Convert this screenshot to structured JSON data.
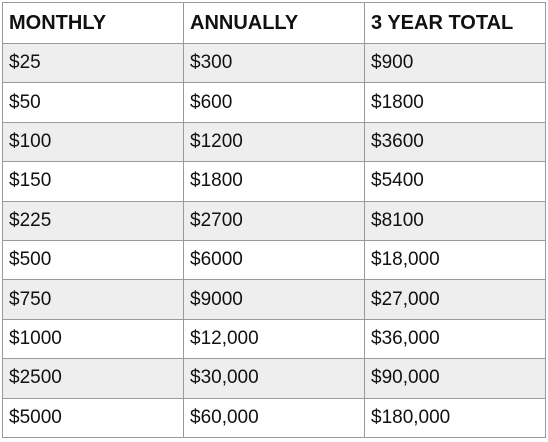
{
  "table": {
    "headers": [
      "MONTHLY",
      "ANNUALLY",
      "3 YEAR TOTAL"
    ],
    "rows": [
      [
        "$25",
        "$300",
        "$900"
      ],
      [
        "$50",
        "$600",
        "$1800"
      ],
      [
        "$100",
        "$1200",
        "$3600"
      ],
      [
        "$150",
        "$1800",
        "$5400"
      ],
      [
        "$225",
        "$2700",
        "$8100"
      ],
      [
        "$500",
        "$6000",
        "$18,000"
      ],
      [
        "$750",
        "$9000",
        "$27,000"
      ],
      [
        "$1000",
        "$12,000",
        "$36,000"
      ],
      [
        "$2500",
        "$30,000",
        "$90,000"
      ],
      [
        "$5000",
        "$60,000",
        "$180,000"
      ]
    ],
    "colors": {
      "border": "#9a9a9a",
      "stripe": "#eeeeee",
      "background": "#ffffff",
      "text": "#111111"
    }
  }
}
